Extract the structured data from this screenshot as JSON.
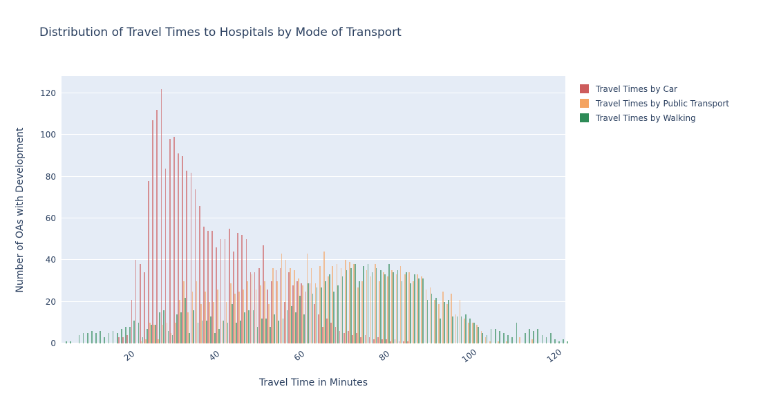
{
  "title": "Distribution of Travel Times to Hospitals by Mode of Transport",
  "x_axis": {
    "title": "Travel Time in Minutes",
    "ticks": [
      20,
      40,
      60,
      80,
      100,
      120
    ]
  },
  "y_axis": {
    "title": "Number of OAs with Development",
    "ticks": [
      0,
      20,
      40,
      60,
      80,
      100,
      120
    ]
  },
  "legend": {
    "items": [
      {
        "label": "Travel Times by Car",
        "color": "#CD5C5C"
      },
      {
        "label": "Travel Times by Public Transport",
        "color": "#F4A462"
      },
      {
        "label": "Travel Times by Walking",
        "color": "#2E8B57"
      }
    ]
  },
  "colors": {
    "text": "#2a3f5f",
    "plot_background": "#E5ECF6",
    "gridline": "#ffffff",
    "car": "#CD5C5C",
    "public_transport": "#F4A462",
    "walking": "#2E8B57"
  },
  "chart_data": {
    "type": "bar",
    "subtype": "grouped-histogram",
    "title": "Distribution of Travel Times to Hospitals by Mode of Transport",
    "xlabel": "Travel Time in Minutes",
    "ylabel": "Number of OAs with Development",
    "bin_width_minutes": 1,
    "bin_start_minute": 4,
    "xlim": [
      3.7,
      122.3
    ],
    "ylim": [
      0,
      128
    ],
    "grid": "horizontal-white",
    "legend_position": "right-top-outside",
    "bar_opacity": 0.65,
    "series": [
      {
        "name": "Travel Times by Car",
        "key": "car",
        "color": "#CD5C5C",
        "values": [
          0,
          0,
          0,
          0,
          0,
          0,
          0,
          0,
          0,
          0,
          0,
          0,
          0,
          3,
          3,
          4,
          21,
          40,
          38,
          34,
          78,
          107,
          112,
          122,
          84,
          98,
          99,
          91,
          90,
          83,
          82,
          74,
          66,
          56,
          54,
          54,
          46,
          50,
          50,
          55,
          44,
          53,
          52,
          50,
          34,
          34,
          36,
          47,
          26,
          30,
          35,
          36,
          20,
          34,
          28,
          30,
          29,
          25,
          29,
          19,
          14,
          8,
          12,
          10,
          8,
          6,
          5,
          6,
          4,
          5,
          3,
          4,
          3,
          2,
          3,
          2,
          2,
          1,
          2,
          1,
          1,
          1,
          0,
          0,
          0,
          0,
          0,
          0,
          0,
          0,
          0,
          0,
          0,
          0,
          0,
          0,
          0,
          0,
          0,
          0,
          0,
          0,
          0,
          0,
          0,
          0,
          0,
          0,
          0,
          0,
          0,
          0,
          0,
          0,
          0,
          0,
          0,
          0,
          0
        ]
      },
      {
        "name": "Travel Times by Public Transport",
        "key": "public-transport",
        "color": "#F4A462",
        "values": [
          0,
          0,
          0,
          0,
          0,
          0,
          0,
          0,
          0,
          0,
          0,
          0,
          0,
          0,
          0,
          0,
          0,
          0,
          1,
          2,
          10,
          9,
          2,
          9,
          10,
          5,
          10,
          21,
          30,
          15,
          25,
          30,
          19,
          25,
          20,
          20,
          26,
          11,
          20,
          29,
          24,
          25,
          26,
          30,
          33,
          26,
          28,
          30,
          19,
          36,
          30,
          43,
          40,
          36,
          35,
          31,
          28,
          43,
          36,
          29,
          37,
          44,
          32,
          37,
          38,
          36,
          40,
          39,
          38,
          27,
          30,
          35,
          32,
          38,
          30,
          34,
          32,
          35,
          33,
          37,
          33,
          34,
          30,
          33,
          32,
          26,
          27,
          21,
          19,
          25,
          19,
          24,
          14,
          21,
          12,
          10,
          10,
          9,
          6,
          3,
          1,
          0,
          1,
          0,
          1,
          0,
          0,
          3,
          0,
          0,
          2,
          0,
          0,
          0,
          0,
          0,
          0,
          0,
          0
        ]
      },
      {
        "name": "Travel Times by Walking",
        "key": "walking",
        "color": "#2E8B57",
        "values": [
          1,
          1,
          0,
          4,
          5,
          5,
          6,
          5,
          6,
          3,
          5,
          6,
          5,
          7,
          8,
          8,
          11,
          10,
          3,
          7,
          9,
          9,
          15,
          16,
          6,
          4,
          14,
          15,
          22,
          5,
          16,
          10,
          11,
          11,
          13,
          5,
          7,
          11,
          10,
          19,
          10,
          11,
          15,
          16,
          16,
          8,
          12,
          12,
          8,
          14,
          11,
          12,
          16,
          18,
          15,
          23,
          14,
          29,
          24,
          27,
          27,
          30,
          33,
          25,
          28,
          32,
          35,
          36,
          38,
          30,
          37,
          38,
          34,
          36,
          35,
          33,
          38,
          34,
          35,
          30,
          34,
          29,
          33,
          31,
          31,
          21,
          24,
          22,
          12,
          20,
          21,
          13,
          13,
          13,
          14,
          12,
          10,
          8,
          5,
          4,
          7,
          7,
          6,
          5,
          4,
          3,
          10,
          0,
          5,
          7,
          6,
          7,
          4,
          3,
          5,
          2,
          1,
          2,
          1
        ]
      }
    ]
  }
}
